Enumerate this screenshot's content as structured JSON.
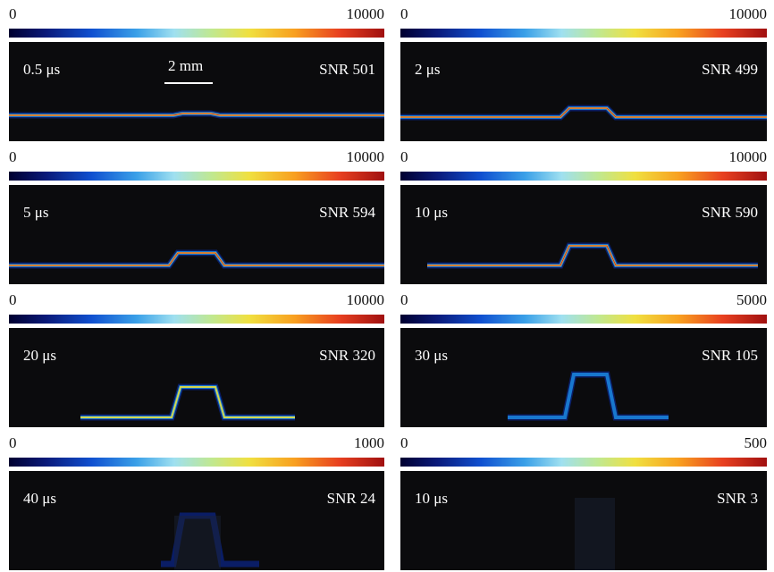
{
  "panels": [
    {
      "cbar_min": "0",
      "cbar_max": "10000",
      "time": "0.5 μs",
      "snr": "SNR 501",
      "scale_bar": "2 mm"
    },
    {
      "cbar_min": "0",
      "cbar_max": "10000",
      "time": "2 μs",
      "snr": "SNR 499"
    },
    {
      "cbar_min": "0",
      "cbar_max": "10000",
      "time": "5 μs",
      "snr": "SNR 594"
    },
    {
      "cbar_min": "0",
      "cbar_max": "10000",
      "time": "10 μs",
      "snr": "SNR 590"
    },
    {
      "cbar_min": "0",
      "cbar_max": "10000",
      "time": "20 μs",
      "snr": "SNR 320"
    },
    {
      "cbar_min": "0",
      "cbar_max": "5000",
      "time": "30 μs",
      "snr": "SNR 105"
    },
    {
      "cbar_min": "0",
      "cbar_max": "1000",
      "time": "40 μs",
      "snr": "SNR 24"
    },
    {
      "cbar_min": "0",
      "cbar_max": "500",
      "time": "10 μs",
      "snr": "SNR 3"
    }
  ]
}
